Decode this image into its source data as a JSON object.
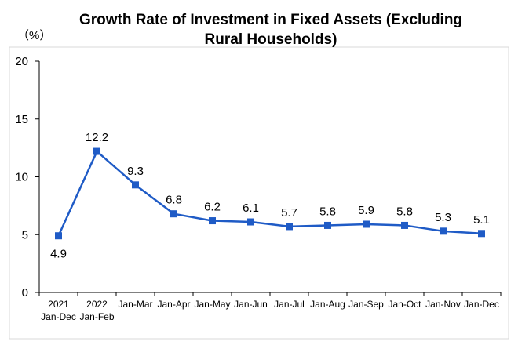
{
  "chart_data": {
    "type": "line",
    "title_line1": "Growth Rate of Investment in Fixed Assets (Excluding",
    "title_line2": "Rural Households)",
    "unit_label": "（%）",
    "categories": [
      [
        "2021",
        "Jan-Dec"
      ],
      [
        "2022",
        "Jan-Feb"
      ],
      [
        "Jan-Mar"
      ],
      [
        "Jan-Apr"
      ],
      [
        "Jan-May"
      ],
      [
        "Jan-Jun"
      ],
      [
        "Jan-Jul"
      ],
      [
        "Jan-Aug"
      ],
      [
        "Jan-Sep"
      ],
      [
        "Jan-Oct"
      ],
      [
        "Jan-Nov"
      ],
      [
        "Jan-Dec"
      ]
    ],
    "values": [
      4.9,
      12.2,
      9.3,
      6.8,
      6.2,
      6.1,
      5.7,
      5.8,
      5.9,
      5.8,
      5.3,
      5.1
    ],
    "data_labels": [
      "4.9",
      "12.2",
      "9.3",
      "6.8",
      "6.2",
      "6.1",
      "5.7",
      "5.8",
      "5.9",
      "5.8",
      "5.3",
      "5.1"
    ],
    "label_below": [
      true,
      false,
      false,
      false,
      false,
      false,
      false,
      false,
      false,
      false,
      false,
      false
    ],
    "ylim": [
      0,
      20
    ],
    "yticks": [
      "0",
      "5",
      "10",
      "15",
      "20"
    ],
    "grid": false,
    "legend": "none",
    "colors": {
      "line": "#1F5BC6",
      "axis": "#000000",
      "frame": "#D9D9D9"
    }
  }
}
